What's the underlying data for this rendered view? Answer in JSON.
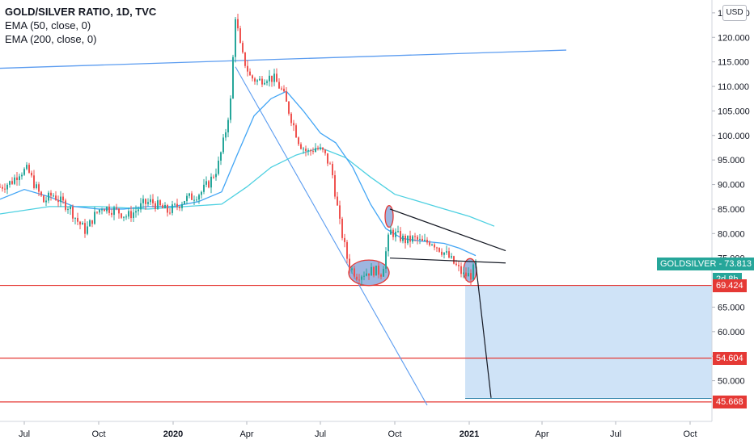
{
  "legend": {
    "title": "GOLD/SILVER RATIO, 1D, TVC",
    "line1": "EMA (50, close, 0)",
    "line2": "EMA (200, close, 0)"
  },
  "currency": "USD",
  "symbol_tag": {
    "label": "GOLDSILVER",
    "value": "73.813",
    "countdown": "2d 8h",
    "color": "#26a69a"
  },
  "level_tags": [
    {
      "value": "69.424",
      "color": "#e53935"
    },
    {
      "value": "54.604",
      "color": "#e53935"
    },
    {
      "value": "45.668",
      "color": "#e53935"
    }
  ],
  "colors": {
    "up_candle": "#26a69a",
    "down_candle": "#ef5350",
    "ema50": "#42a5f5",
    "ema200": "#4dd0e1",
    "trendline": "#5b9cf0",
    "support": "#e53935",
    "target_zone": "#cfe3f7",
    "ellipse_fill": "#7e9dd6",
    "ellipse_stroke": "#e53935"
  },
  "chart_data": {
    "type": "line",
    "title": "GOLD/SILVER RATIO, 1D, TVC",
    "xlabel": "",
    "ylabel": "",
    "ylim": [
      44.5,
      126.3
    ],
    "x_ticks": [
      {
        "label": "Jul",
        "date": "2019-07-01"
      },
      {
        "label": "Oct",
        "date": "2019-10-01"
      },
      {
        "label": "2020",
        "date": "2020-01-01",
        "bold": true
      },
      {
        "label": "Apr",
        "date": "2020-04-01"
      },
      {
        "label": "Jul",
        "date": "2020-07-01"
      },
      {
        "label": "Oct",
        "date": "2020-10-01"
      },
      {
        "label": "2021",
        "date": "2021-01-01",
        "bold": true
      },
      {
        "label": "Apr",
        "date": "2021-04-01"
      },
      {
        "label": "Jul",
        "date": "2021-07-01"
      },
      {
        "label": "Oct",
        "date": "2021-10-01"
      }
    ],
    "y_ticks": [
      "125.000",
      "120.000",
      "115.000",
      "110.000",
      "105.000",
      "100.000",
      "95.000",
      "90.000",
      "85.000",
      "80.000",
      "75.000",
      "65.000",
      "60.000",
      "55.000",
      "50.000"
    ],
    "series": [
      {
        "type": "candlestick",
        "points": [
          [
            "2019-06-01",
            89.5
          ],
          [
            "2019-06-15",
            90.5
          ],
          [
            "2019-06-25",
            92.5
          ],
          [
            "2019-07-05",
            93.0
          ],
          [
            "2019-07-15",
            89.5
          ],
          [
            "2019-07-25",
            86.5
          ],
          [
            "2019-08-05",
            88.0
          ],
          [
            "2019-08-15",
            86.5
          ],
          [
            "2019-08-25",
            85.5
          ],
          [
            "2019-09-05",
            82.5
          ],
          [
            "2019-09-15",
            80.5
          ],
          [
            "2019-09-25",
            83.5
          ],
          [
            "2019-10-05",
            85.5
          ],
          [
            "2019-10-15",
            85.0
          ],
          [
            "2019-10-25",
            84.5
          ],
          [
            "2019-11-05",
            83.5
          ],
          [
            "2019-11-15",
            84.5
          ],
          [
            "2019-11-25",
            86.0
          ],
          [
            "2019-12-05",
            86.5
          ],
          [
            "2019-12-15",
            85.5
          ],
          [
            "2019-12-25",
            84.5
          ],
          [
            "2020-01-05",
            85.5
          ],
          [
            "2020-01-15",
            87.0
          ],
          [
            "2020-01-25",
            87.5
          ],
          [
            "2020-02-05",
            88.5
          ],
          [
            "2020-02-15",
            90.5
          ],
          [
            "2020-02-25",
            93.5
          ],
          [
            "2020-03-05",
            100.0
          ],
          [
            "2020-03-12",
            107.0
          ],
          [
            "2020-03-18",
            124.5
          ],
          [
            "2020-03-25",
            117.0
          ],
          [
            "2020-04-05",
            112.0
          ],
          [
            "2020-04-15",
            111.0
          ],
          [
            "2020-04-25",
            112.0
          ],
          [
            "2020-05-05",
            111.5
          ],
          [
            "2020-05-15",
            109.0
          ],
          [
            "2020-05-25",
            104.0
          ],
          [
            "2020-06-05",
            98.5
          ],
          [
            "2020-06-15",
            96.5
          ],
          [
            "2020-06-25",
            97.5
          ],
          [
            "2020-07-05",
            96.5
          ],
          [
            "2020-07-15",
            93.0
          ],
          [
            "2020-07-25",
            82.0
          ],
          [
            "2020-08-05",
            73.5
          ],
          [
            "2020-08-15",
            71.5
          ],
          [
            "2020-08-25",
            72.0
          ],
          [
            "2020-09-05",
            72.5
          ],
          [
            "2020-09-15",
            72.0
          ],
          [
            "2020-09-25",
            80.5
          ],
          [
            "2020-10-05",
            79.5
          ],
          [
            "2020-10-15",
            78.5
          ],
          [
            "2020-10-25",
            79.0
          ],
          [
            "2020-11-05",
            78.0
          ],
          [
            "2020-11-15",
            78.5
          ],
          [
            "2020-11-25",
            77.0
          ],
          [
            "2020-12-05",
            75.5
          ],
          [
            "2020-12-15",
            73.5
          ],
          [
            "2020-12-25",
            71.5
          ],
          [
            "2021-01-03",
            71.5
          ],
          [
            "2021-01-09",
            73.8
          ]
        ]
      },
      {
        "name": "EMA (50, close, 0)",
        "points": [
          [
            "2019-06-01",
            87.0
          ],
          [
            "2019-07-01",
            89.0
          ],
          [
            "2019-08-01",
            87.5
          ],
          [
            "2019-09-01",
            85.5
          ],
          [
            "2019-10-01",
            85.0
          ],
          [
            "2019-11-01",
            85.0
          ],
          [
            "2019-12-01",
            85.5
          ],
          [
            "2020-01-01",
            85.5
          ],
          [
            "2020-02-01",
            86.5
          ],
          [
            "2020-03-01",
            88.5
          ],
          [
            "2020-03-20",
            96.0
          ],
          [
            "2020-04-10",
            104.0
          ],
          [
            "2020-05-01",
            107.5
          ],
          [
            "2020-05-20",
            109.0
          ],
          [
            "2020-06-10",
            105.0
          ],
          [
            "2020-07-01",
            100.5
          ],
          [
            "2020-07-20",
            98.5
          ],
          [
            "2020-08-10",
            93.5
          ],
          [
            "2020-09-01",
            86.0
          ],
          [
            "2020-09-20",
            81.0
          ],
          [
            "2020-10-10",
            79.0
          ],
          [
            "2020-11-01",
            78.5
          ],
          [
            "2020-12-01",
            78.0
          ],
          [
            "2020-12-20",
            77.0
          ],
          [
            "2021-01-09",
            75.5
          ]
        ]
      },
      {
        "name": "EMA (200, close, 0)",
        "points": [
          [
            "2019-06-01",
            84.0
          ],
          [
            "2019-08-01",
            85.5
          ],
          [
            "2019-10-01",
            85.5
          ],
          [
            "2019-12-01",
            85.0
          ],
          [
            "2020-01-15",
            85.5
          ],
          [
            "2020-03-01",
            86.0
          ],
          [
            "2020-04-01",
            89.5
          ],
          [
            "2020-05-01",
            93.5
          ],
          [
            "2020-06-01",
            96.0
          ],
          [
            "2020-07-01",
            97.5
          ],
          [
            "2020-08-01",
            95.5
          ],
          [
            "2020-09-01",
            91.5
          ],
          [
            "2020-10-01",
            88.0
          ],
          [
            "2020-11-01",
            86.5
          ],
          [
            "2020-12-01",
            85.0
          ],
          [
            "2021-01-01",
            83.5
          ],
          [
            "2021-02-01",
            81.5
          ]
        ]
      }
    ],
    "annotations": {
      "trendline_upper": [
        [
          "2019-06-01",
          113.7
        ],
        [
          "2021-05-01",
          117.4
        ]
      ],
      "trendline_falling": [
        [
          "2020-03-18",
          114.0
        ],
        [
          "2020-11-10",
          45.0
        ]
      ],
      "wedge_upper": [
        [
          "2020-09-25",
          85.0
        ],
        [
          "2021-02-15",
          76.5
        ]
      ],
      "wedge_lower": [
        [
          "2020-09-25",
          75.0
        ],
        [
          "2021-02-15",
          74.0
        ]
      ],
      "projection": [
        [
          "2021-01-09",
          74.0
        ],
        [
          "2021-01-28",
          46.5
        ]
      ],
      "support_levels": [
        69.424,
        54.604,
        45.668
      ],
      "target_zone": {
        "x": [
          "2020-12-27",
          "2021-11-01"
        ],
        "y": [
          46.5,
          69.424
        ]
      },
      "target_line": {
        "x": [
          "2020-12-27",
          "2021-11-01"
        ],
        "y": 46.4
      },
      "highlight_ellipses": [
        {
          "center": [
            "2020-08-30",
            72.0
          ],
          "radius_x_days": 25,
          "radius_y": 2.6
        },
        {
          "center": [
            "2020-09-24",
            83.5
          ],
          "radius_x_days": 5,
          "radius_y": 2.2
        },
        {
          "center": [
            "2021-01-02",
            72.5
          ],
          "radius_x_days": 8,
          "radius_y": 2.4
        }
      ]
    }
  }
}
